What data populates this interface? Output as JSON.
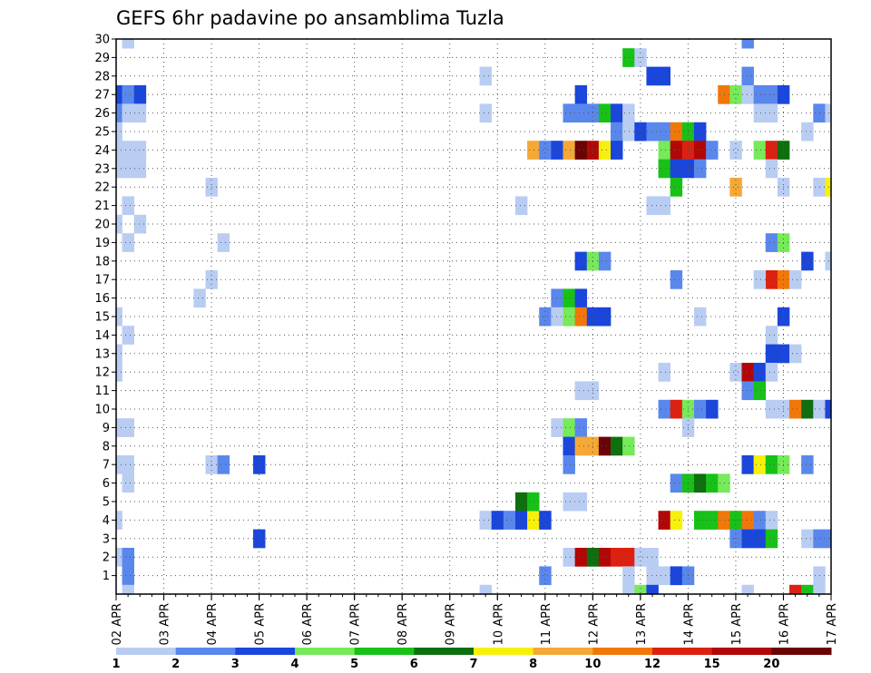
{
  "chart_data": {
    "type": "heatmap",
    "title": "GEFS 6hr padavine po ansamblima Tuzla",
    "x_tick_labels": [
      "02 APR",
      "03 APR",
      "04 APR",
      "05 APR",
      "06 APR",
      "07 APR",
      "08 APR",
      "09 APR",
      "10 APR",
      "11 APR",
      "12 APR",
      "13 APR",
      "14 APR",
      "15 APR",
      "16 APR",
      "17 APR"
    ],
    "y_tick_labels": [
      "1",
      "2",
      "3",
      "4",
      "5",
      "6",
      "7",
      "8",
      "9",
      "10",
      "11",
      "12",
      "13",
      "14",
      "15",
      "16",
      "17",
      "18",
      "19",
      "20",
      "21",
      "22",
      "23",
      "24",
      "25",
      "26",
      "27",
      "28",
      "29",
      "30"
    ],
    "x_unit": "6-hour step from 02 APR 00Z",
    "y_unit": "ensemble member",
    "xlim": [
      0,
      60
    ],
    "ylim": [
      0,
      30
    ],
    "grid": true,
    "colorbar": {
      "labels": [
        "1",
        "2",
        "3",
        "4",
        "5",
        "6",
        "7",
        "8",
        "10",
        "12",
        "15",
        "20"
      ],
      "colors": [
        "#b9cdf3",
        "#5a87ec",
        "#1a46dc",
        "#76ea59",
        "#17c117",
        "#0d6f0d",
        "#f7f00a",
        "#f5a836",
        "#f27709",
        "#dd2010",
        "#b20707",
        "#6a0404"
      ]
    },
    "cells": [
      [
        1,
        30,
        1
      ],
      [
        53,
        30,
        2
      ],
      [
        0,
        27,
        3
      ],
      [
        1,
        27,
        2
      ],
      [
        2,
        27,
        3
      ],
      [
        0,
        26,
        2
      ],
      [
        1,
        26,
        1
      ],
      [
        2,
        26,
        1
      ],
      [
        0,
        25,
        1
      ],
      [
        0,
        24,
        1
      ],
      [
        1,
        24,
        1
      ],
      [
        2,
        24,
        1
      ],
      [
        0,
        23,
        1
      ],
      [
        1,
        23,
        1
      ],
      [
        2,
        23,
        1
      ],
      [
        1,
        21,
        1
      ],
      [
        0,
        20,
        1
      ],
      [
        2,
        20,
        1
      ],
      [
        1,
        19,
        1
      ],
      [
        0,
        15,
        1
      ],
      [
        1,
        14,
        1
      ],
      [
        0,
        13,
        1
      ],
      [
        0,
        12,
        1
      ],
      [
        0,
        9,
        1
      ],
      [
        1,
        9,
        1
      ],
      [
        0,
        7,
        1
      ],
      [
        1,
        7,
        1
      ],
      [
        1,
        6,
        1
      ],
      [
        0,
        4,
        1
      ],
      [
        0,
        2,
        1
      ],
      [
        1,
        2,
        2
      ],
      [
        1,
        1,
        2
      ],
      [
        1,
        0,
        1
      ],
      [
        8,
        22,
        1
      ],
      [
        9,
        19,
        1
      ],
      [
        8,
        17,
        1
      ],
      [
        7,
        16,
        1
      ],
      [
        8,
        7,
        1
      ],
      [
        9,
        7,
        2
      ],
      [
        12,
        7,
        3
      ],
      [
        12,
        3,
        3
      ],
      [
        31,
        28,
        1
      ],
      [
        31,
        26,
        1
      ],
      [
        34,
        21,
        1
      ],
      [
        31,
        4,
        1
      ],
      [
        32,
        4,
        3
      ],
      [
        33,
        4,
        2
      ],
      [
        34,
        4,
        3
      ],
      [
        35,
        4,
        7
      ],
      [
        36,
        4,
        3
      ],
      [
        34,
        5,
        6
      ],
      [
        35,
        5,
        5
      ],
      [
        36,
        15,
        2
      ],
      [
        31,
        0,
        1
      ],
      [
        43,
        29,
        5
      ],
      [
        44,
        29,
        1
      ],
      [
        45,
        28,
        3
      ],
      [
        46,
        28,
        3
      ],
      [
        39,
        27,
        3
      ],
      [
        38,
        26,
        2
      ],
      [
        39,
        26,
        2
      ],
      [
        40,
        26,
        2
      ],
      [
        41,
        26,
        5
      ],
      [
        42,
        26,
        3
      ],
      [
        43,
        26,
        1
      ],
      [
        42,
        25,
        2
      ],
      [
        43,
        25,
        1
      ],
      [
        44,
        25,
        3
      ],
      [
        45,
        25,
        2
      ],
      [
        46,
        25,
        2
      ],
      [
        47,
        25,
        9
      ],
      [
        48,
        25,
        5
      ],
      [
        49,
        25,
        3
      ],
      [
        35,
        24,
        8
      ],
      [
        36,
        24,
        2
      ],
      [
        37,
        24,
        3
      ],
      [
        38,
        24,
        8
      ],
      [
        39,
        24,
        12
      ],
      [
        40,
        24,
        11
      ],
      [
        41,
        24,
        7
      ],
      [
        42,
        24,
        3
      ],
      [
        46,
        24,
        4
      ],
      [
        47,
        24,
        11
      ],
      [
        48,
        24,
        10
      ],
      [
        49,
        24,
        11
      ],
      [
        50,
        24,
        2
      ],
      [
        46,
        23,
        5
      ],
      [
        47,
        23,
        3
      ],
      [
        48,
        23,
        3
      ],
      [
        49,
        23,
        2
      ],
      [
        47,
        22,
        5
      ],
      [
        45,
        21,
        1
      ],
      [
        46,
        21,
        1
      ],
      [
        39,
        18,
        3
      ],
      [
        40,
        18,
        4
      ],
      [
        41,
        18,
        2
      ],
      [
        47,
        17,
        2
      ],
      [
        37,
        16,
        2
      ],
      [
        38,
        16,
        5
      ],
      [
        39,
        16,
        3
      ],
      [
        37,
        15,
        1
      ],
      [
        38,
        15,
        4
      ],
      [
        39,
        15,
        9
      ],
      [
        40,
        15,
        3
      ],
      [
        41,
        15,
        3
      ],
      [
        49,
        15,
        1
      ],
      [
        39,
        11,
        1
      ],
      [
        40,
        11,
        1
      ],
      [
        46,
        12,
        1
      ],
      [
        46,
        10,
        2
      ],
      [
        47,
        10,
        10
      ],
      [
        48,
        10,
        4
      ],
      [
        49,
        10,
        2
      ],
      [
        50,
        10,
        3
      ],
      [
        37,
        9,
        1
      ],
      [
        38,
        9,
        4
      ],
      [
        39,
        9,
        2
      ],
      [
        48,
        9,
        1
      ],
      [
        38,
        8,
        3
      ],
      [
        39,
        8,
        8
      ],
      [
        40,
        8,
        8
      ],
      [
        41,
        8,
        12
      ],
      [
        42,
        8,
        6
      ],
      [
        43,
        8,
        4
      ],
      [
        38,
        7,
        2
      ],
      [
        47,
        6,
        2
      ],
      [
        48,
        6,
        5
      ],
      [
        49,
        6,
        6
      ],
      [
        50,
        6,
        5
      ],
      [
        51,
        6,
        4
      ],
      [
        38,
        5,
        1
      ],
      [
        39,
        5,
        1
      ],
      [
        46,
        4,
        11
      ],
      [
        47,
        4,
        7
      ],
      [
        49,
        4,
        5
      ],
      [
        50,
        4,
        5
      ],
      [
        51,
        4,
        9
      ],
      [
        38,
        2,
        1
      ],
      [
        39,
        2,
        11
      ],
      [
        40,
        2,
        6
      ],
      [
        41,
        2,
        11
      ],
      [
        42,
        2,
        10
      ],
      [
        43,
        2,
        10
      ],
      [
        44,
        2,
        1
      ],
      [
        45,
        2,
        1
      ],
      [
        36,
        1,
        2
      ],
      [
        43,
        1,
        1
      ],
      [
        45,
        1,
        1
      ],
      [
        46,
        1,
        1
      ],
      [
        47,
        1,
        3
      ],
      [
        48,
        1,
        2
      ],
      [
        43,
        0,
        1
      ],
      [
        44,
        0,
        4
      ],
      [
        45,
        0,
        3
      ],
      [
        53,
        28,
        2
      ],
      [
        51,
        27,
        9
      ],
      [
        52,
        27,
        4
      ],
      [
        53,
        27,
        1
      ],
      [
        54,
        27,
        2
      ],
      [
        55,
        27,
        2
      ],
      [
        56,
        27,
        3
      ],
      [
        54,
        26,
        1
      ],
      [
        55,
        26,
        1
      ],
      [
        59,
        26,
        2
      ],
      [
        60,
        26,
        1
      ],
      [
        58,
        25,
        1
      ],
      [
        52,
        24,
        1
      ],
      [
        54,
        24,
        4
      ],
      [
        55,
        24,
        10
      ],
      [
        56,
        24,
        6
      ],
      [
        55,
        23,
        1
      ],
      [
        52,
        22,
        8
      ],
      [
        56,
        22,
        1
      ],
      [
        59,
        22,
        1
      ],
      [
        60,
        22,
        7
      ],
      [
        58,
        18,
        3
      ],
      [
        60,
        18,
        1
      ],
      [
        55,
        19,
        2
      ],
      [
        56,
        19,
        4
      ],
      [
        55,
        17,
        10
      ],
      [
        56,
        17,
        9
      ],
      [
        54,
        17,
        1
      ],
      [
        57,
        17,
        1
      ],
      [
        56,
        15,
        3
      ],
      [
        55,
        14,
        1
      ],
      [
        55,
        13,
        3
      ],
      [
        56,
        13,
        3
      ],
      [
        57,
        13,
        1
      ],
      [
        52,
        12,
        1
      ],
      [
        53,
        12,
        11
      ],
      [
        54,
        12,
        3
      ],
      [
        55,
        12,
        1
      ],
      [
        53,
        11,
        2
      ],
      [
        54,
        11,
        5
      ],
      [
        55,
        10,
        1
      ],
      [
        56,
        10,
        1
      ],
      [
        57,
        10,
        9
      ],
      [
        58,
        10,
        6
      ],
      [
        59,
        10,
        1
      ],
      [
        60,
        10,
        3
      ],
      [
        53,
        7,
        3
      ],
      [
        54,
        7,
        7
      ],
      [
        55,
        7,
        5
      ],
      [
        56,
        7,
        4
      ],
      [
        58,
        7,
        2
      ],
      [
        52,
        4,
        5
      ],
      [
        53,
        4,
        9
      ],
      [
        54,
        4,
        2
      ],
      [
        55,
        4,
        1
      ],
      [
        52,
        3,
        2
      ],
      [
        53,
        3,
        3
      ],
      [
        54,
        3,
        3
      ],
      [
        55,
        3,
        5
      ],
      [
        58,
        3,
        1
      ],
      [
        59,
        3,
        2
      ],
      [
        60,
        3,
        2
      ],
      [
        59,
        1,
        1
      ],
      [
        53,
        0,
        1
      ],
      [
        57,
        0,
        10
      ],
      [
        58,
        0,
        5
      ],
      [
        59,
        0,
        1
      ]
    ]
  }
}
